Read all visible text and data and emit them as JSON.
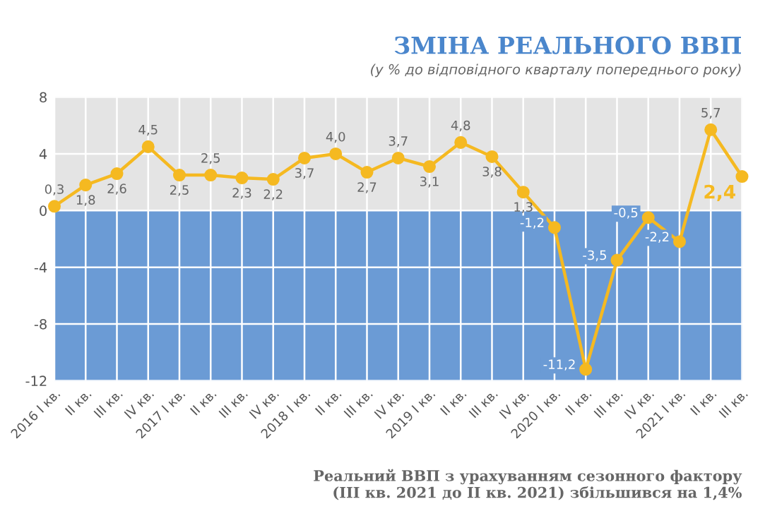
{
  "chart_data": {
    "type": "line",
    "title": "ЗМІНА РЕАЛЬНОГО ВВП",
    "subtitle": "(у % до відповідного кварталу попереднього року)",
    "categories": [
      "2016 I кв.",
      "II кв.",
      "III кв.",
      "IV кв.",
      "2017 I кв.",
      "II кв.",
      "III кв.",
      "IV кв.",
      "2018 I кв.",
      "II кв.",
      "III кв.",
      "IV кв.",
      "2019 I кв.",
      "II кв.",
      "III кв.",
      "IV кв.",
      "2020 I кв.",
      "II кв.",
      "III кв.",
      "IV кв.",
      "2021 I кв.",
      "II кв.",
      "III кв."
    ],
    "series": [
      {
        "color": "#f5b921",
        "values": [
          0.3,
          1.8,
          2.6,
          4.5,
          2.5,
          2.5,
          2.3,
          2.2,
          3.7,
          4.0,
          2.7,
          3.7,
          3.1,
          4.8,
          3.8,
          1.3,
          -1.2,
          -11.2,
          -3.5,
          -0.5,
          -2.2,
          5.7,
          2.4
        ]
      }
    ],
    "value_labels": [
      "0,3",
      "1,8",
      "2,6",
      "4,5",
      "2,5",
      "2,5",
      "2,3",
      "2,2",
      "3,7",
      "4,0",
      "2,7",
      "3,7",
      "3,1",
      "4,8",
      "3,8",
      "1,3",
      "-1,2",
      "-11,2",
      "-3,5",
      "-0,5",
      "-2,2",
      "5,7",
      "2,4"
    ],
    "ylim": [
      -12,
      8
    ],
    "yticks": [
      -12,
      -8,
      -4,
      0,
      4,
      8
    ],
    "grid": true,
    "marker": "circle",
    "line_style": "solid",
    "bands": [
      {
        "axis": "y",
        "from": 0,
        "to": 8,
        "color": "#e4e4e4"
      },
      {
        "axis": "y",
        "from": -12,
        "to": 0,
        "color": "#6b9bd5"
      }
    ],
    "annotations": [
      "Реальний ВВП з урахуванням сезонного фактору\n(III кв. 2021 до II кв. 2021) збільшився на 1,4%"
    ]
  }
}
